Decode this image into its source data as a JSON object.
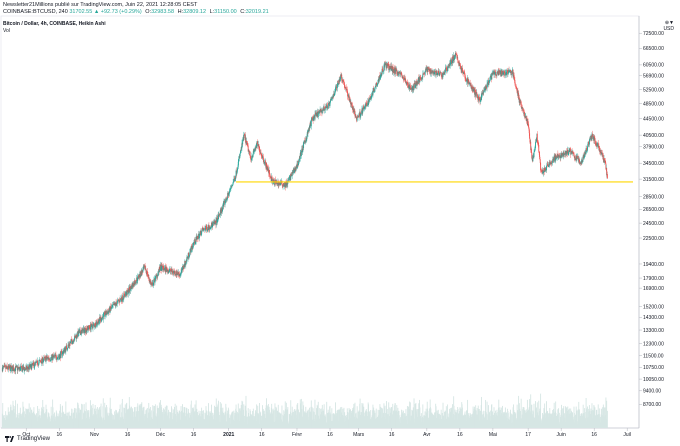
{
  "header": {
    "line1": "Newsletter21Millions publié sur TradingView.com, Juin 22, 2021 12:28:05 CEST",
    "symbol": "COINBASE:BTCUSD, 240",
    "price": "31702.55",
    "change": "▲ +92.73 (+0.29%)",
    "o_label": "O:",
    "o_val": "32983.58",
    "h_label": "H:",
    "h_val": "32809.12",
    "l_label": "L:",
    "l_val": "31150.00",
    "c_label": "C:",
    "c_val": "32019.21"
  },
  "title": "Bitcoin / Dollar, 4h, COINBASE, Heikin Ashi",
  "vol_label": "Vol",
  "currency_top": "⊕▼",
  "currency": "USD",
  "footer": {
    "brand": "TradingView"
  },
  "colors": {
    "up": "#26a69a",
    "down": "#ef5350",
    "support": "#ffd700",
    "volume": "#d6e6e4"
  },
  "chart_data": {
    "type": "candlestick",
    "title": "Bitcoin / Dollar, 4h, COINBASE, Heikin Ashi",
    "yscale": "log",
    "ylim": [
      7600,
      80000
    ],
    "y_ticks": [
      72500,
      66500,
      60500,
      56900,
      52500,
      48500,
      44500,
      40500,
      37900,
      34500,
      31500,
      28500,
      26500,
      24500,
      22500,
      19400,
      17900,
      16900,
      15200,
      14300,
      13300,
      12300,
      11500,
      10750,
      10050,
      9400,
      8700
    ],
    "x_ticks": [
      "Oct",
      "16",
      "Nov",
      "16",
      "Déc",
      "16",
      "2021",
      "16",
      "Févr",
      "16",
      "Mars",
      "16",
      "Avr",
      "16",
      "Mai",
      "17",
      "Juin",
      "16",
      "Juil"
    ],
    "support_level": 31000,
    "price_path": [
      [
        "2020-09-20",
        10700
      ],
      [
        "2020-10-01",
        10650
      ],
      [
        "2020-10-10",
        11300
      ],
      [
        "2020-10-16",
        11450
      ],
      [
        "2020-10-25",
        13100
      ],
      [
        "2020-11-01",
        13700
      ],
      [
        "2020-11-10",
        15300
      ],
      [
        "2020-11-16",
        16500
      ],
      [
        "2020-11-24",
        19000
      ],
      [
        "2020-11-27",
        17100
      ],
      [
        "2020-12-01",
        19000
      ],
      [
        "2020-12-10",
        18300
      ],
      [
        "2020-12-16",
        21800
      ],
      [
        "2020-12-20",
        23500
      ],
      [
        "2020-12-26",
        24500
      ],
      [
        "2021-01-01",
        29000
      ],
      [
        "2021-01-04",
        32000
      ],
      [
        "2021-01-08",
        40500
      ],
      [
        "2021-01-11",
        35500
      ],
      [
        "2021-01-14",
        38500
      ],
      [
        "2021-01-21",
        31000
      ],
      [
        "2021-01-27",
        30500
      ],
      [
        "2021-02-01",
        34000
      ],
      [
        "2021-02-08",
        44500
      ],
      [
        "2021-02-16",
        48500
      ],
      [
        "2021-02-21",
        57000
      ],
      [
        "2021-02-28",
        44500
      ],
      [
        "2021-03-05",
        48500
      ],
      [
        "2021-03-13",
        60500
      ],
      [
        "2021-03-20",
        57500
      ],
      [
        "2021-03-25",
        52500
      ],
      [
        "2021-04-01",
        59000
      ],
      [
        "2021-04-08",
        57000
      ],
      [
        "2021-04-14",
        64000
      ],
      [
        "2021-04-18",
        56900
      ],
      [
        "2021-04-25",
        49500
      ],
      [
        "2021-05-01",
        57500
      ],
      [
        "2021-05-10",
        58000
      ],
      [
        "2021-05-13",
        49500
      ],
      [
        "2021-05-17",
        43000
      ],
      [
        "2021-05-19",
        34500
      ],
      [
        "2021-05-21",
        40500
      ],
      [
        "2021-05-23",
        32500
      ],
      [
        "2021-05-29",
        35500
      ],
      [
        "2021-06-05",
        37000
      ],
      [
        "2021-06-10",
        34500
      ],
      [
        "2021-06-15",
        40500
      ],
      [
        "2021-06-18",
        37900
      ],
      [
        "2021-06-21",
        34500
      ],
      [
        "2021-06-22",
        31702
      ]
    ]
  }
}
